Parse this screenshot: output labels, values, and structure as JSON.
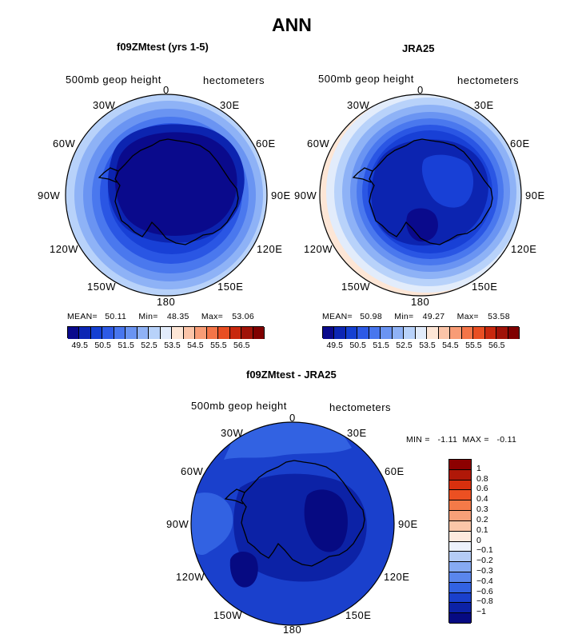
{
  "title": "ANN",
  "panels": [
    {
      "id": "model",
      "title": "f09ZMtest (yrs 1-5)",
      "field_label": "500mb geop height",
      "units": "hectometers",
      "stats": {
        "mean_label": "MEAN=",
        "mean": "50.11",
        "min_label": "Min=",
        "min": "48.35",
        "max_label": "Max=",
        "max": "53.06"
      }
    },
    {
      "id": "obs",
      "title": "JRA25",
      "field_label": "500mb geop height",
      "units": "hectometers",
      "stats": {
        "mean_label": "MEAN=",
        "mean": "50.98",
        "min_label": "Min=",
        "min": "49.27",
        "max_label": "Max=",
        "max": "53.58"
      }
    }
  ],
  "diff_panel": {
    "title": "f09ZMtest - JRA25",
    "field_label": "500mb geop height",
    "units": "hectometers",
    "stats_text": "MIN =   -1.11  MAX =   -0.11"
  },
  "longitude_labels": {
    "top": "0",
    "tr": "30E",
    "r60": "60E",
    "r90": "90E",
    "r120": "120E",
    "br": "150E",
    "bottom": "180",
    "bl": "150W",
    "l120": "120W",
    "l90": "90W",
    "l60": "60W",
    "tl": "30W"
  },
  "abs_colorbar": {
    "ticks": [
      "49.5",
      "50.5",
      "51.5",
      "52.5",
      "53.5",
      "54.5",
      "55.5",
      "56.5"
    ],
    "colors": [
      "#0a0a8c",
      "#0c26b4",
      "#1440d2",
      "#2d5ae6",
      "#4876ee",
      "#6a94f2",
      "#8fb2f6",
      "#b8d2fa",
      "#e2ecfb",
      "#fde6d6",
      "#fbc4a8",
      "#f89c76",
      "#f47548",
      "#e84e22",
      "#c8280e",
      "#a01208",
      "#800000"
    ]
  },
  "diff_colorbar": {
    "labels": [
      "1",
      "0.8",
      "0.6",
      "0.4",
      "0.3",
      "0.2",
      "0.1",
      "0",
      "−0.1",
      "−0.2",
      "−0.3",
      "−0.4",
      "−0.6",
      "−0.8",
      "−1"
    ],
    "colors": [
      "#8c0000",
      "#b01808",
      "#d8300e",
      "#ec5022",
      "#f47a48",
      "#f8a078",
      "#fbc6a8",
      "#fdeade",
      "#ecf2fc",
      "#b4ccf6",
      "#86aaf2",
      "#5a86ec",
      "#3262e2",
      "#1a40cc",
      "#0c22a6",
      "#060a82"
    ]
  },
  "fill_colors": {
    "c49": "#0a0a8c",
    "c49b": "#0c24b0",
    "c50": "#1840d6",
    "c50b": "#2a56e4",
    "c51": "#4a78ee",
    "c51b": "#6a94f2",
    "c52": "#8eb2f6",
    "c52b": "#b8d2fa",
    "c53": "#e2ecfb",
    "c53b": "#fde6d6",
    "d1": "#0c22a6",
    "d2": "#1a40cc",
    "d3": "#3262e2",
    "d0": "#060a82"
  }
}
